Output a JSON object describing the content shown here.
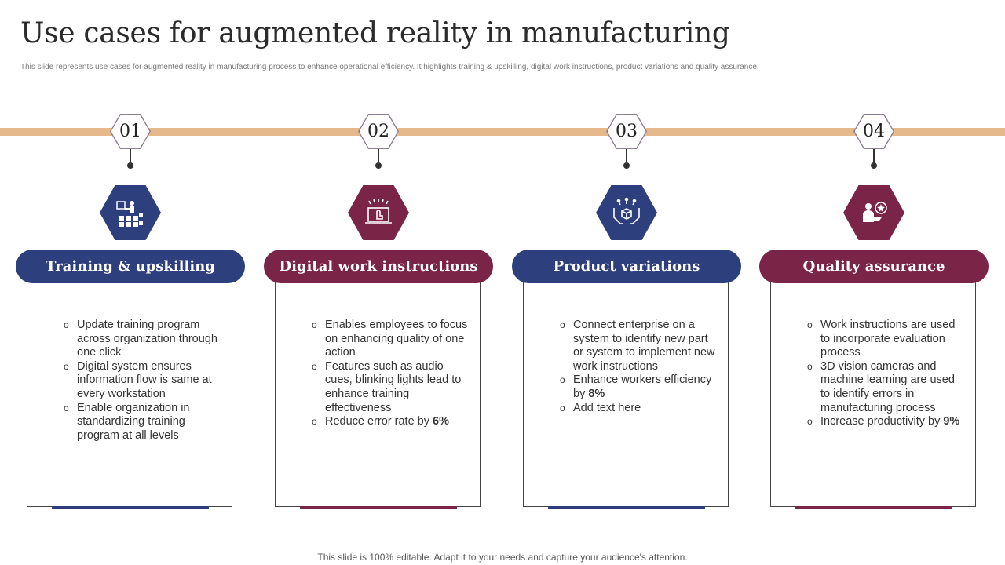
{
  "title": "Use cases for augmented reality in manufacturing",
  "subtitle": "This slide represents use cases for augmented reality in manufacturing process to enhance operational efficiency. It highlights training & upskilling, digital work instructions, product variations and quality assurance.",
  "colors": {
    "blue": "#2e3f7e",
    "maroon": "#7a2448",
    "timeline": "#e5b98c"
  },
  "columns": [
    {
      "number": "01",
      "icon": "training-icon",
      "heading": "Training & upskilling",
      "bullets": [
        "Update training program across organization through one click",
        "Digital system ensures information flow is same at every workstation",
        "Enable organization in standardizing training program at all levels"
      ]
    },
    {
      "number": "02",
      "icon": "laptop-touch-icon",
      "heading": "Digital work instructions",
      "bullets": [
        "Enables employees to focus on enhancing quality of one action",
        "Features such as audio cues, blinking lights lead to enhance training effectiveness",
        "Reduce error rate by ",
        "6%"
      ]
    },
    {
      "number": "03",
      "icon": "hands-box-icon",
      "heading": "Product variations",
      "bullets": [
        "Connect enterprise on a system to identify new part or system to implement new work instructions",
        "Enhance workers efficiency by ",
        "8%",
        "Add text here"
      ]
    },
    {
      "number": "04",
      "icon": "quality-person-icon",
      "heading": "Quality assurance",
      "bullets": [
        "Work instructions are used to incorporate evaluation process",
        "3D vision cameras and machine learning are used to identify errors in manufacturing process",
        "Increase productivity by ",
        "9%"
      ]
    }
  ],
  "footer": "This slide is 100% editable. Adapt it to your needs and capture your audience's attention."
}
